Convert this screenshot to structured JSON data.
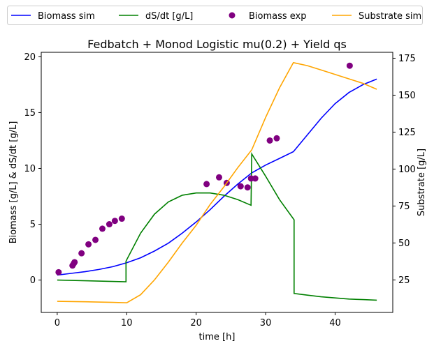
{
  "chart_data": {
    "type": "line",
    "title": "Fedbatch + Monod Logistic mu(0.2) + Yield qs",
    "xlabel": "time [h]",
    "ylabel_left": "Biomass [g/L] & dS/dt [g/L]",
    "ylabel_right": "Substrate [g/L]",
    "xlim": [
      -2.3,
      48.3
    ],
    "ylim_left": [
      -2.9,
      20.4
    ],
    "ylim_right": [
      3,
      179
    ],
    "xticks": [
      0,
      10,
      20,
      30,
      40
    ],
    "yticks_left": [
      0,
      5,
      10,
      15,
      20
    ],
    "yticks_right": [
      25,
      50,
      75,
      100,
      125,
      150,
      175
    ],
    "legend_position": "top (outside, above plot)",
    "series": [
      {
        "name": "Biomass sim",
        "kind": "line",
        "axis": "left",
        "color": "#0000ff",
        "points": [
          [
            0,
            0.45
          ],
          [
            2,
            0.6
          ],
          [
            4,
            0.75
          ],
          [
            6,
            0.95
          ],
          [
            8,
            1.2
          ],
          [
            10,
            1.55
          ],
          [
            12,
            2.0
          ],
          [
            14,
            2.6
          ],
          [
            16,
            3.3
          ],
          [
            18,
            4.2
          ],
          [
            20,
            5.2
          ],
          [
            22,
            6.3
          ],
          [
            24,
            7.5
          ],
          [
            26,
            8.6
          ],
          [
            28,
            9.6
          ],
          [
            30,
            10.3
          ],
          [
            32,
            10.9
          ],
          [
            34,
            11.5
          ],
          [
            36,
            13.0
          ],
          [
            38,
            14.5
          ],
          [
            40,
            15.8
          ],
          [
            42,
            16.8
          ],
          [
            44,
            17.5
          ],
          [
            46,
            18.0
          ]
        ]
      },
      {
        "name": "dS/dt [g/L]",
        "kind": "line",
        "axis": "left",
        "color": "#008000",
        "points": [
          [
            0,
            0.0
          ],
          [
            9.9,
            -0.15
          ],
          [
            9.9,
            1.7
          ],
          [
            12,
            4.2
          ],
          [
            14,
            5.9
          ],
          [
            16,
            7.0
          ],
          [
            18,
            7.6
          ],
          [
            20,
            7.8
          ],
          [
            22,
            7.8
          ],
          [
            24,
            7.6
          ],
          [
            26,
            7.2
          ],
          [
            27.9,
            6.7
          ],
          [
            28,
            11.3
          ],
          [
            30,
            9.3
          ],
          [
            32,
            7.2
          ],
          [
            34.1,
            5.4
          ],
          [
            34.1,
            -1.2
          ],
          [
            36,
            -1.35
          ],
          [
            38,
            -1.5
          ],
          [
            40,
            -1.6
          ],
          [
            42,
            -1.7
          ],
          [
            44,
            -1.75
          ],
          [
            46,
            -1.8
          ]
        ]
      },
      {
        "name": "Biomass exp",
        "kind": "scatter",
        "axis": "left",
        "color": "#800080",
        "points": [
          [
            0.2,
            0.7
          ],
          [
            2.2,
            1.3
          ],
          [
            2.4,
            1.5
          ],
          [
            2.5,
            1.6
          ],
          [
            3.5,
            2.4
          ],
          [
            4.5,
            3.2
          ],
          [
            5.5,
            3.6
          ],
          [
            6.5,
            4.6
          ],
          [
            7.5,
            5.0
          ],
          [
            8.3,
            5.3
          ],
          [
            9.3,
            5.5
          ],
          [
            21.5,
            8.6
          ],
          [
            23.3,
            9.2
          ],
          [
            24.4,
            8.7
          ],
          [
            26.4,
            8.4
          ],
          [
            27.4,
            8.3
          ],
          [
            27.9,
            9.1
          ],
          [
            28.5,
            9.1
          ],
          [
            30.6,
            12.5
          ],
          [
            31.6,
            12.7
          ],
          [
            42.1,
            19.2
          ]
        ]
      },
      {
        "name": "Substrate sim",
        "kind": "line",
        "axis": "right",
        "color": "#ffa500",
        "points": [
          [
            0,
            10.5
          ],
          [
            4,
            10.2
          ],
          [
            8,
            9.8
          ],
          [
            10,
            9.5
          ],
          [
            12,
            15
          ],
          [
            14,
            25
          ],
          [
            16,
            37
          ],
          [
            18,
            50
          ],
          [
            20,
            62
          ],
          [
            22,
            76
          ],
          [
            24,
            88
          ],
          [
            26,
            101
          ],
          [
            28,
            113
          ],
          [
            30,
            135
          ],
          [
            32,
            155
          ],
          [
            34,
            172
          ],
          [
            36,
            170
          ],
          [
            38,
            167
          ],
          [
            40,
            164
          ],
          [
            42,
            161
          ],
          [
            44,
            158
          ],
          [
            46,
            154
          ]
        ]
      }
    ]
  }
}
